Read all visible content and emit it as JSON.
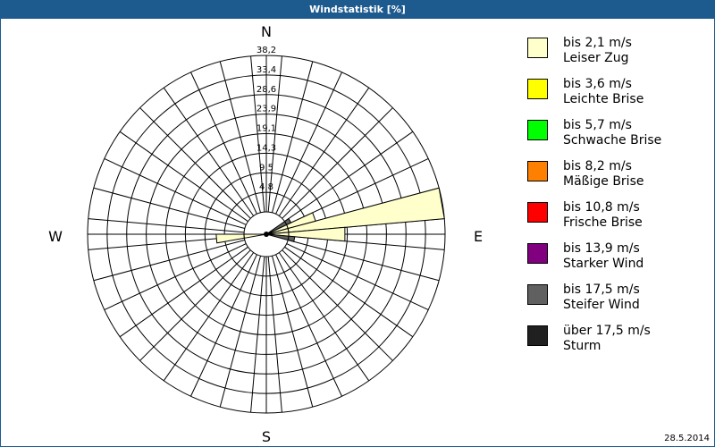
{
  "title": "Windstatistik [%]",
  "date": "28.5.2014",
  "chart_data": {
    "type": "wind-rose",
    "directions": {
      "n": "N",
      "e": "E",
      "s": "S",
      "w": "W"
    },
    "rlim": [
      0,
      38.2
    ],
    "ring_labels": [
      "4,8",
      "9,5",
      "14,3",
      "19,1",
      "23,9",
      "28,6",
      "33,4",
      "38,2"
    ],
    "sectors_count": 36,
    "bars": [
      {
        "bearing": 80,
        "value": 38.2,
        "class": 0
      },
      {
        "bearing": 90,
        "value": 13.8,
        "class": 0
      },
      {
        "bearing": 70,
        "value": 7.0,
        "class": 0
      },
      {
        "bearing": 265,
        "value": 6.8,
        "class": 0
      },
      {
        "bearing": 100,
        "value": 1.5,
        "class": 6
      },
      {
        "bearing": 60,
        "value": 1.2,
        "class": 6
      }
    ]
  },
  "legend": [
    {
      "line1": "bis 2,1 m/s",
      "line2": "Leiser Zug",
      "color": "#ffffcc"
    },
    {
      "line1": "bis 3,6 m/s",
      "line2": "Leichte Brise",
      "color": "#ffff00"
    },
    {
      "line1": "bis 5,7 m/s",
      "line2": "Schwache Brise",
      "color": "#00ff00"
    },
    {
      "line1": "bis 8,2 m/s",
      "line2": "Mäßige Brise",
      "color": "#ff8000"
    },
    {
      "line1": "bis 10,8 m/s",
      "line2": "Frische Brise",
      "color": "#ff0000"
    },
    {
      "line1": "bis 13,9 m/s",
      "line2": "Starker Wind",
      "color": "#800080"
    },
    {
      "line1": "bis 17,5 m/s",
      "line2": "Steifer Wind",
      "color": "#606060"
    },
    {
      "line1": "über 17,5 m/s",
      "line2": "Sturm",
      "color": "#202020"
    }
  ]
}
